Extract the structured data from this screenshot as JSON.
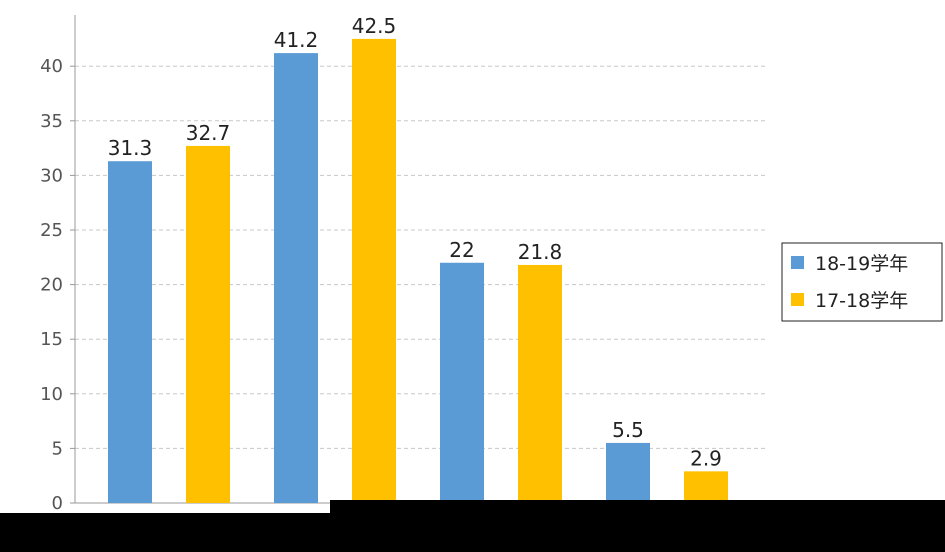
{
  "chart_data": {
    "type": "bar",
    "title": "",
    "xlabel": "",
    "ylabel": "",
    "ylim": [
      0,
      43
    ],
    "yticks": [
      0,
      5,
      10,
      15,
      20,
      25,
      30,
      35,
      40
    ],
    "grid": true,
    "legend_position": "right",
    "categories": [
      "",
      "",
      "",
      ""
    ],
    "series": [
      {
        "name": "18-19学年",
        "color": "#5b9bd5",
        "values": [
          31.3,
          41.2,
          22,
          5.5
        ]
      },
      {
        "name": "17-18学年",
        "color": "#ffc000",
        "values": [
          32.7,
          42.5,
          21.8,
          2.9
        ]
      }
    ]
  }
}
